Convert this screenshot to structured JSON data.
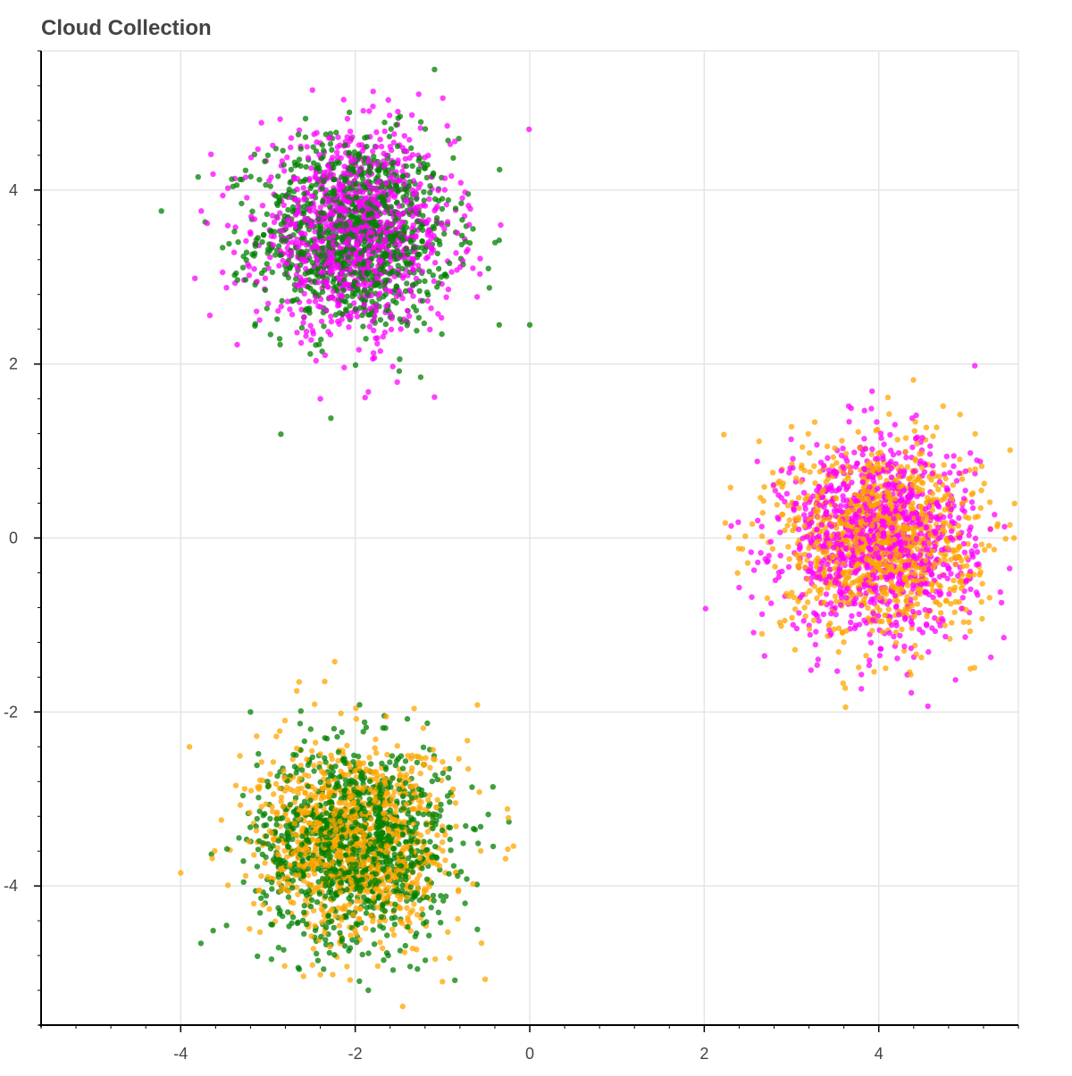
{
  "chart_data": {
    "type": "scatter",
    "title": "Cloud Collection",
    "xlabel": "",
    "ylabel": "",
    "xlim": [
      -5.6,
      5.6
    ],
    "ylim": [
      -5.6,
      5.6
    ],
    "x_ticks": [
      -4,
      -2,
      0,
      2,
      4
    ],
    "y_ticks": [
      -4,
      -2,
      0,
      2,
      4
    ],
    "grid": true,
    "legend": "none",
    "series": [
      {
        "color": "#008000",
        "opacity": 0.75,
        "clusters": [
          {
            "center": [
              -2.0,
              3.5
            ],
            "std": 0.55,
            "count": 1100
          },
          {
            "center": [
              -2.0,
              -3.5
            ],
            "std": 0.55,
            "count": 1100
          }
        ],
        "outliers": [
          [
            0.0,
            2.45
          ],
          [
            -0.35,
            2.45
          ],
          [
            -3.8,
            4.15
          ],
          [
            -1.85,
            -5.2
          ],
          [
            -3.2,
            -2.0
          ],
          [
            -0.6,
            -4.5
          ]
        ]
      },
      {
        "color": "#ff00ff",
        "opacity": 0.75,
        "clusters": [
          {
            "center": [
              -2.0,
              3.5
            ],
            "std": 0.55,
            "count": 1100
          },
          {
            "center": [
              4.0,
              0.0
            ],
            "std": 0.55,
            "count": 1100
          }
        ],
        "outliers": [
          [
            5.1,
            1.98
          ],
          [
            -2.4,
            1.6
          ],
          [
            -1.85,
            1.68
          ],
          [
            2.4,
            -0.57
          ],
          [
            5.5,
            -0.35
          ],
          [
            3.8,
            -1.57
          ]
        ]
      },
      {
        "color": "#ffa500",
        "opacity": 0.75,
        "clusters": [
          {
            "center": [
              4.0,
              0.0
            ],
            "std": 0.55,
            "count": 1100
          },
          {
            "center": [
              -2.0,
              -3.5
            ],
            "std": 0.55,
            "count": 1100
          }
        ],
        "outliers": [
          [
            2.3,
            0.58
          ],
          [
            5.55,
            0.0
          ],
          [
            -4.0,
            -3.85
          ],
          [
            -3.9,
            -2.4
          ],
          [
            -2.35,
            -1.65
          ],
          [
            -0.6,
            -1.92
          ],
          [
            -1.0,
            -5.1
          ]
        ]
      }
    ]
  }
}
